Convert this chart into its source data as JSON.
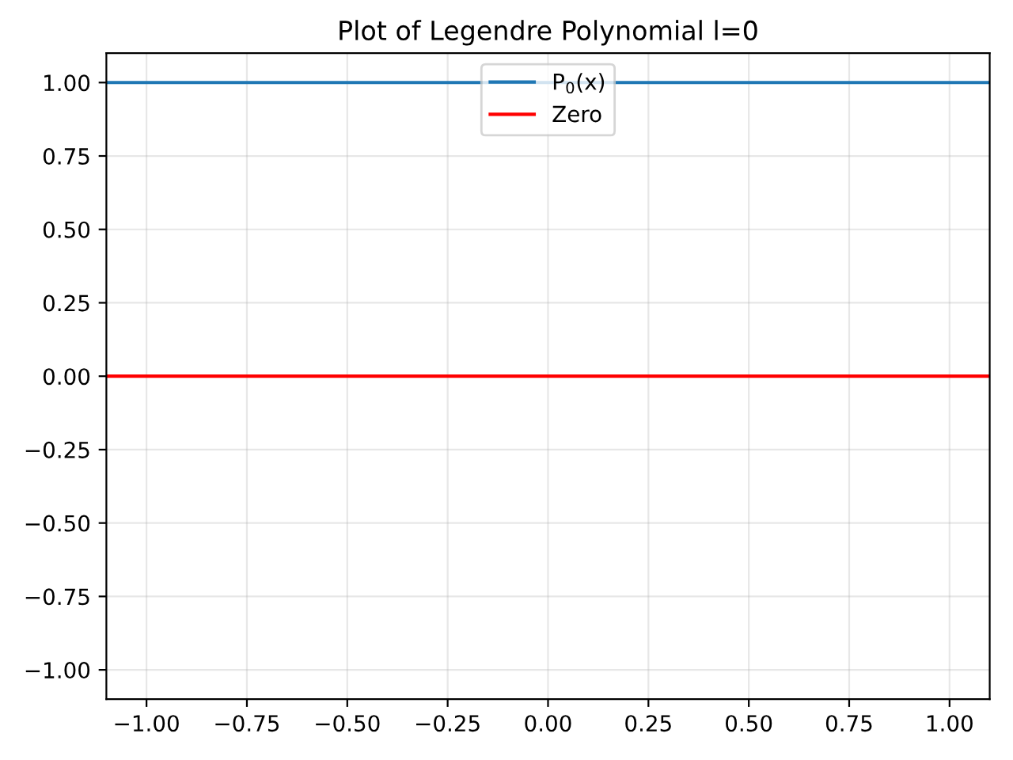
{
  "chart_data": {
    "type": "line",
    "title": "Plot of Legendre Polynomial l=0",
    "x": [
      -1.1,
      1.1
    ],
    "series": [
      {
        "name": "P$_{0}$(x)",
        "color": "#1f77b4",
        "values": [
          1,
          1
        ]
      },
      {
        "name": "Zero",
        "color": "#ff0000",
        "values": [
          0,
          0
        ]
      }
    ],
    "xlim": [
      -1.1,
      1.1
    ],
    "ylim": [
      -1.1,
      1.1
    ],
    "xticks": [
      {
        "value": -1,
        "label": "−1.00"
      },
      {
        "value": -0.75,
        "label": "−0.75"
      },
      {
        "value": -0.5,
        "label": "−0.50"
      },
      {
        "value": -0.25,
        "label": "−0.25"
      },
      {
        "value": 0,
        "label": "0.00"
      },
      {
        "value": 0.25,
        "label": "0.25"
      },
      {
        "value": 0.5,
        "label": "0.50"
      },
      {
        "value": 0.75,
        "label": "0.75"
      },
      {
        "value": 1,
        "label": "1.00"
      }
    ],
    "yticks": [
      {
        "value": -1,
        "label": "−1.00"
      },
      {
        "value": -0.75,
        "label": "−0.75"
      },
      {
        "value": -0.5,
        "label": "−0.50"
      },
      {
        "value": -0.25,
        "label": "−0.25"
      },
      {
        "value": 0,
        "label": "0.00"
      },
      {
        "value": 0.25,
        "label": "0.25"
      },
      {
        "value": 0.5,
        "label": "0.50"
      },
      {
        "value": 0.75,
        "label": "0.75"
      },
      {
        "value": 1,
        "label": "1.00"
      }
    ],
    "grid": true,
    "legend": "top",
    "line_style": "solid",
    "marker": "none"
  }
}
